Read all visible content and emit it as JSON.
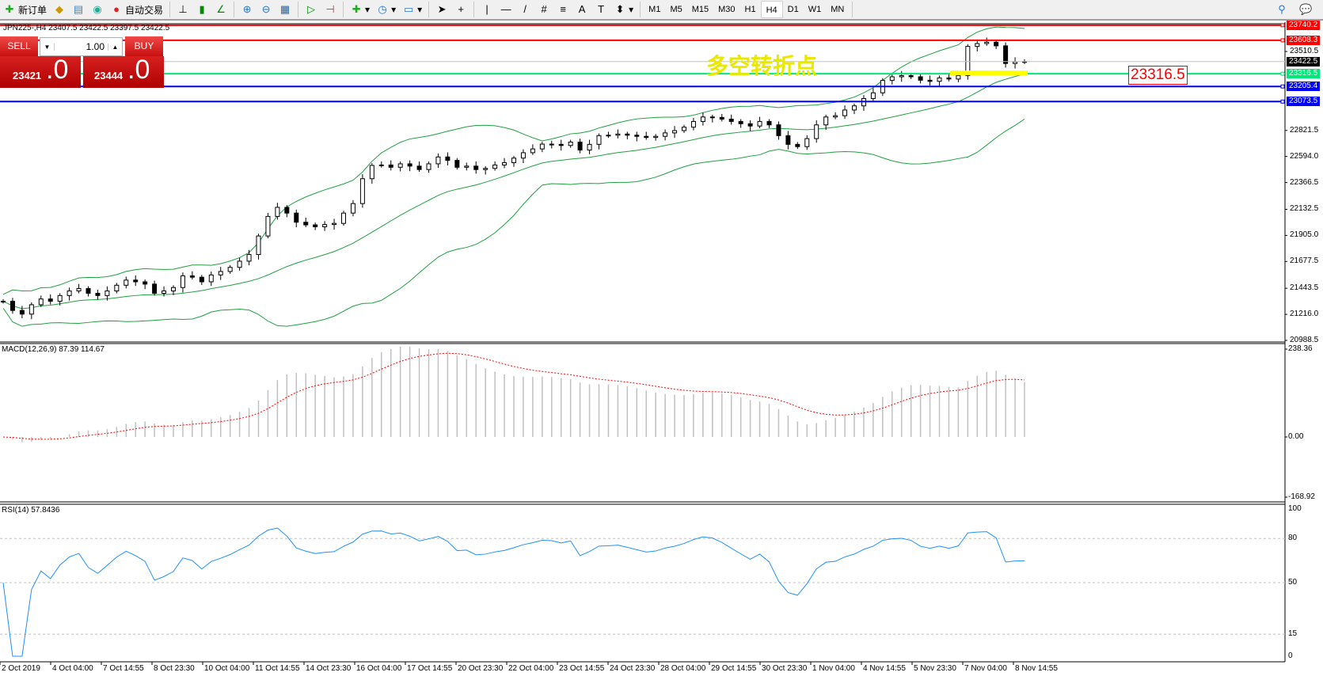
{
  "toolbar": {
    "new_order": "新订单",
    "auto_trading": "自动交易",
    "timeframes": [
      "M1",
      "M5",
      "M15",
      "M30",
      "H1",
      "H4",
      "D1",
      "W1",
      "MN"
    ],
    "active_timeframe": "H4"
  },
  "chart": {
    "header": "JPN225-,H4  23407.5 23422.5 23397.5 23422.5",
    "trade_panel": {
      "sell": "SELL",
      "buy": "BUY",
      "lot": "1.00",
      "bid_main": "23421",
      "bid_frac": ".0",
      "ask_main": "23444",
      "ask_frac": ".0"
    },
    "annotation": "多空转折点",
    "price_box": "23316.5",
    "price_axis": [
      "23510.5",
      "22821.5",
      "22594.0",
      "22366.5",
      "22132.5",
      "21905.0",
      "21677.5",
      "21443.5",
      "21216.0",
      "20988.5"
    ],
    "levels": [
      {
        "price": "23740.2",
        "color": "#ff0000"
      },
      {
        "price": "23608.3",
        "color": "#ff0000"
      },
      {
        "price": "23422.5",
        "color": "#000000",
        "line": "#c0c0c0"
      },
      {
        "price": "23316.5",
        "color": "#00e878"
      },
      {
        "price": "23205.4",
        "color": "#0000ff"
      },
      {
        "price": "23073.5",
        "color": "#0000ff"
      }
    ],
    "time_axis": [
      "2 Oct 2019",
      "4 Oct 04:00",
      "7 Oct 14:55",
      "8 Oct 23:30",
      "10 Oct 04:00",
      "11 Oct 14:55",
      "14 Oct 23:30",
      "16 Oct 04:00",
      "17 Oct 14:55",
      "20 Oct 23:30",
      "22 Oct 04:00",
      "23 Oct 14:55",
      "24 Oct 23:30",
      "28 Oct 04:00",
      "29 Oct 14:55",
      "30 Oct 23:30",
      "1 Nov 04:00",
      "4 Nov 14:55",
      "5 Nov 23:30",
      "7 Nov 04:00",
      "8 Nov 14:55"
    ],
    "macd": {
      "label": "MACD(12,26,9) 87.39 114.67",
      "axis": [
        "238.36",
        "0.00",
        "-168.92"
      ]
    },
    "rsi": {
      "label": "RSI(14) 57.8436",
      "axis": [
        "100",
        "80",
        "50",
        "15",
        "0"
      ]
    }
  },
  "chart_data": {
    "type": "candlestick",
    "symbol": "JPN225-",
    "timeframe": "H4",
    "ylim": [
      20988.5,
      23740.2
    ],
    "close": [
      21330,
      21250,
      21218,
      21300,
      21350,
      21330,
      21380,
      21420,
      21441,
      21400,
      21380,
      21420,
      21470,
      21515,
      21500,
      21480,
      21400,
      21420,
      21450,
      21552,
      21540,
      21500,
      21560,
      21590,
      21626,
      21680,
      21738,
      21900,
      22071,
      22150,
      22100,
      22020,
      21997,
      21980,
      22000,
      22010,
      22100,
      22183,
      22400,
      22516,
      22520,
      22500,
      22530,
      22510,
      22480,
      22530,
      22590,
      22560,
      22500,
      22510,
      22480,
      22490,
      22520,
      22540,
      22580,
      22627,
      22660,
      22702,
      22700,
      22690,
      22720,
      22650,
      22700,
      22776,
      22780,
      22790,
      22780,
      22770,
      22760,
      22770,
      22800,
      22820,
      22850,
      22900,
      22939,
      22935,
      22920,
      22900,
      22880,
      22860,
      22900,
      22870,
      22776,
      22700,
      22680,
      22750,
      22870,
      22939,
      22950,
      23000,
      23036,
      23100,
      23150,
      23258,
      23290,
      23300,
      23290,
      23260,
      23250,
      23280,
      23270,
      23300,
      23555,
      23580,
      23592,
      23560,
      23406,
      23420,
      23422.5
    ],
    "indicators": [
      "Bollinger Bands",
      "MACD(12,26,9)",
      "RSI(14)"
    ],
    "colors": {
      "bands": "#20a040",
      "macd_hist": "#c0c0c0",
      "macd_signal": "#ff0000",
      "rsi": "#1e90ff"
    }
  }
}
